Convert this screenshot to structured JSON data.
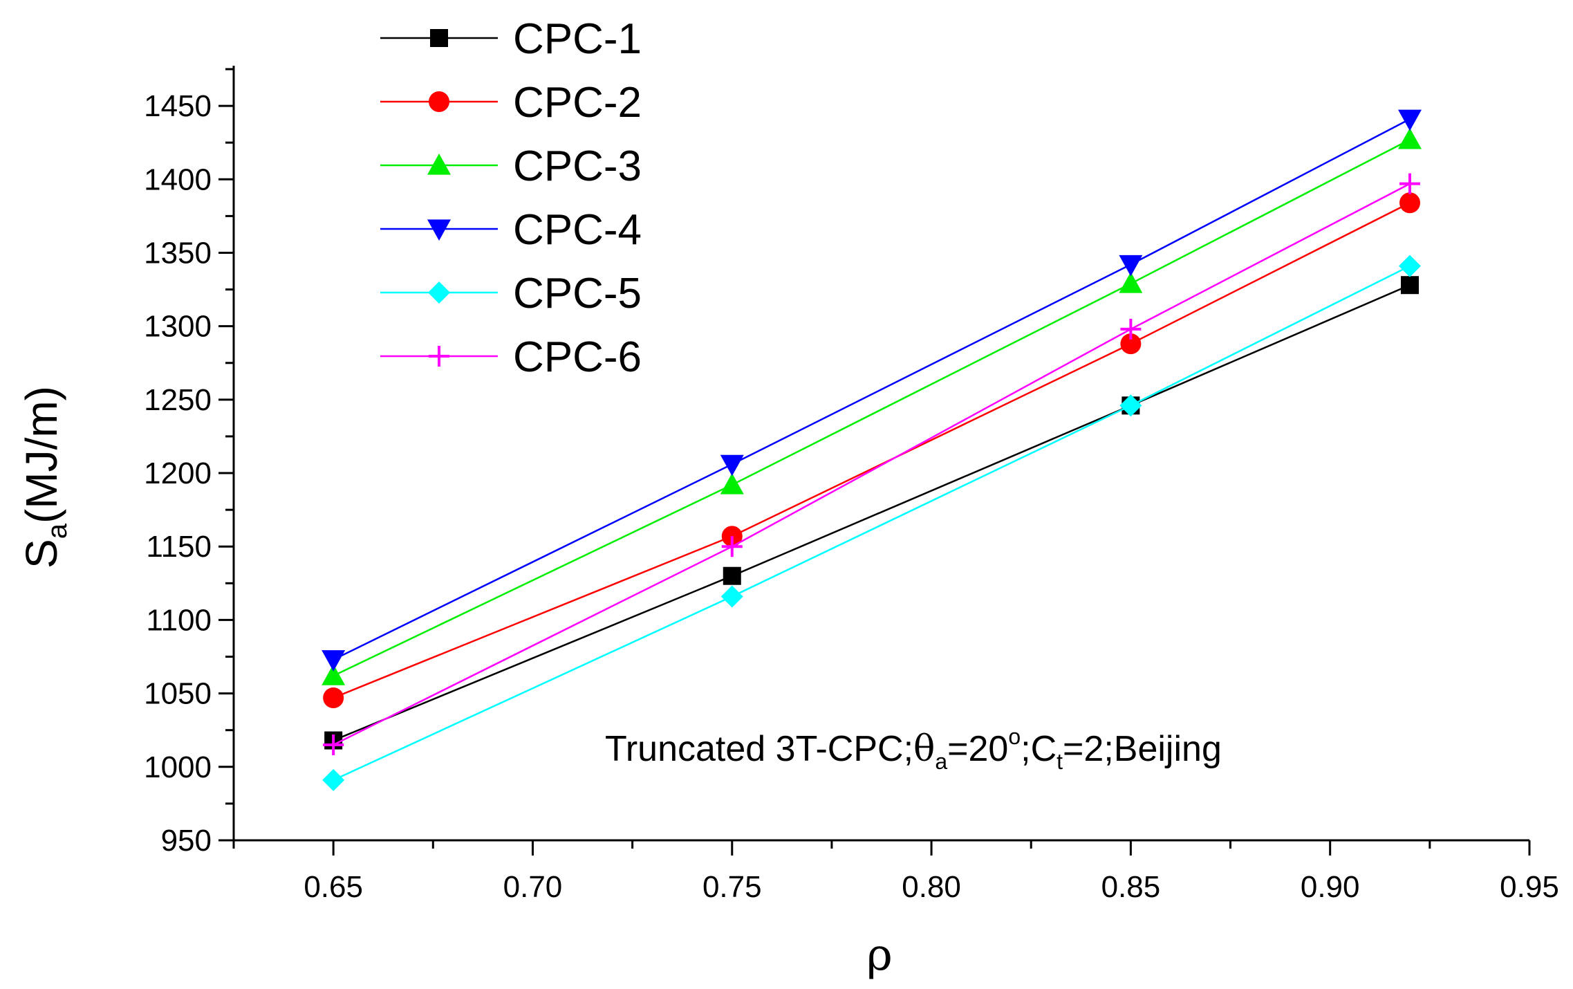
{
  "chart_data": {
    "type": "line",
    "title": "",
    "xlabel": "ρ",
    "ylabel": {
      "main": "S",
      "sub": "a",
      "rest": "(MJ/m)"
    },
    "xlim": [
      0.625,
      0.95
    ],
    "ylim": [
      950,
      1475
    ],
    "x_ticks": [
      0.65,
      0.7,
      0.75,
      0.8,
      0.85,
      0.9,
      0.95
    ],
    "x_tick_labels": [
      "0.65",
      "0.70",
      "0.75",
      "0.80",
      "0.85",
      "0.90",
      "0.95"
    ],
    "y_ticks": [
      950,
      1000,
      1050,
      1100,
      1150,
      1200,
      1250,
      1300,
      1350,
      1400,
      1450
    ],
    "y_tick_labels": [
      "950",
      "1000",
      "1050",
      "1100",
      "1150",
      "1200",
      "1250",
      "1300",
      "1350",
      "1400",
      "1450"
    ],
    "grid": false,
    "legend_position": "top-left",
    "x": [
      0.65,
      0.75,
      0.85,
      0.92
    ],
    "series": [
      {
        "name": "CPC-1",
        "color": "#000000",
        "marker": "square",
        "values": [
          1018,
          1130,
          1246,
          1328
        ]
      },
      {
        "name": "CPC-2",
        "color": "#ff0000",
        "marker": "circle",
        "values": [
          1047,
          1157,
          1288,
          1384
        ]
      },
      {
        "name": "CPC-3",
        "color": "#00ee00",
        "marker": "triangle-up",
        "values": [
          1062,
          1192,
          1329,
          1427
        ]
      },
      {
        "name": "CPC-4",
        "color": "#0000ff",
        "marker": "triangle-down",
        "values": [
          1073,
          1206,
          1342,
          1441
        ]
      },
      {
        "name": "CPC-5",
        "color": "#00ffff",
        "marker": "diamond",
        "values": [
          991,
          1116,
          1246,
          1341
        ]
      },
      {
        "name": "CPC-6",
        "color": "#ff00ff",
        "marker": "plus",
        "values": [
          1015,
          1150,
          1298,
          1397
        ]
      }
    ],
    "annotation": {
      "prefix": "Truncated 3T-CPC;",
      "theta": "θ",
      "theta_sub": "a",
      "angle_text": "=20",
      "degree": "o",
      "ct_text": ";C",
      "ct_sub": "t",
      "suffix": "=2;Beijing"
    }
  }
}
